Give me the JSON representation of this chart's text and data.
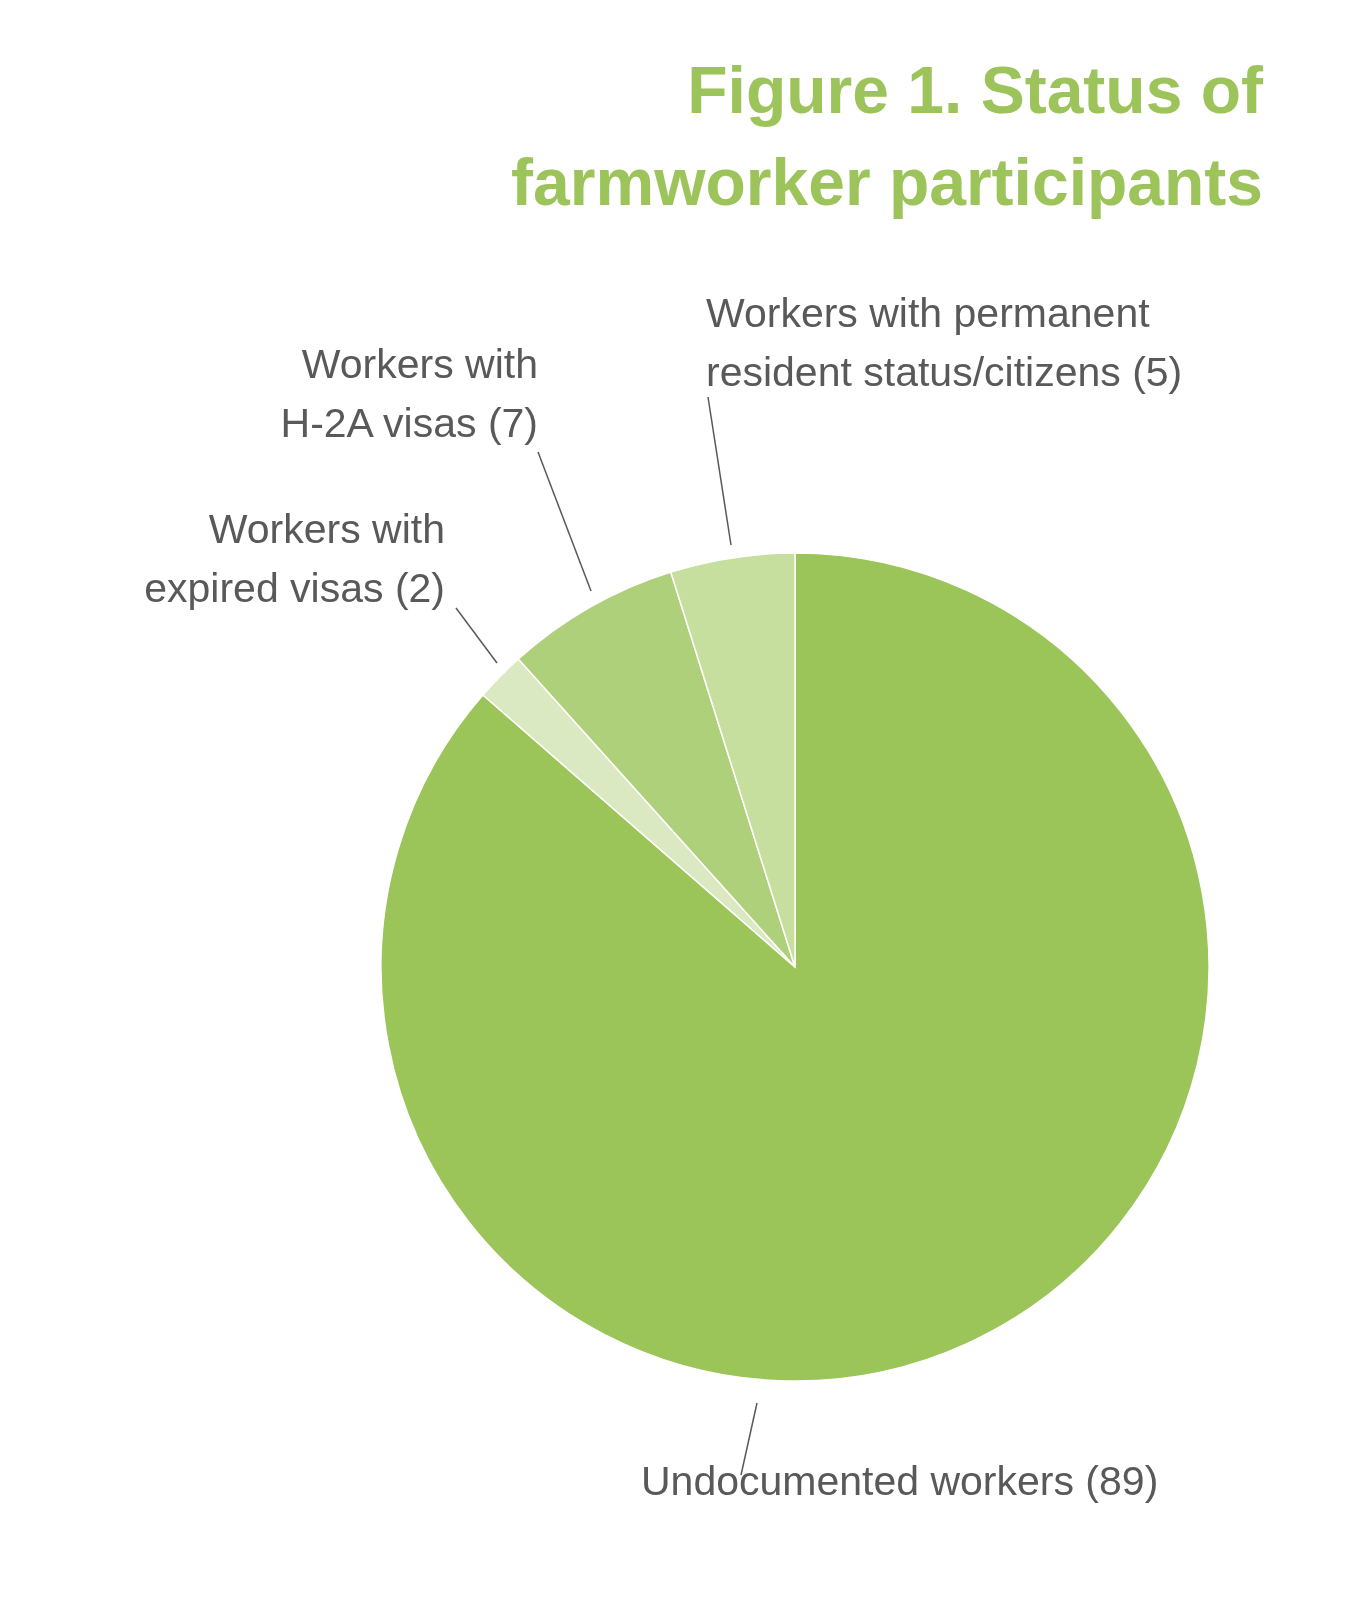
{
  "chart_data": {
    "type": "pie",
    "title": "Figure 1. Status of farmworker participants",
    "categories": [
      "Undocumented workers (89)",
      "Workers with expired visas (2)",
      "Workers with H-2A visas (7)",
      "Workers with permanent resident status/citizens (5)"
    ],
    "values": [
      86.41,
      1.94,
      6.8,
      4.85
    ],
    "colors": [
      "#9bc459",
      "#dbe9c3",
      "#afd07a",
      "#c6df9e"
    ]
  }
}
